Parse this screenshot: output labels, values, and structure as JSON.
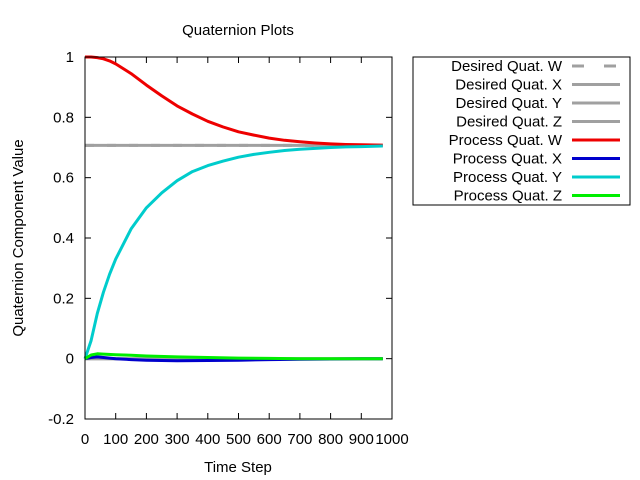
{
  "chart_data": {
    "type": "line",
    "title": "Quaternion Plots",
    "xlabel": "Time Step",
    "ylabel": "Quaternion Component Value",
    "xlim": [
      0,
      1000
    ],
    "ylim": [
      -0.2,
      1
    ],
    "xticks": [
      0,
      100,
      200,
      300,
      400,
      500,
      600,
      700,
      800,
      900,
      1000
    ],
    "yticks": [
      -0.2,
      0,
      0.2,
      0.4,
      0.6,
      0.8,
      1
    ],
    "xtick_labels": [
      "0",
      "100",
      "200",
      "300",
      "400",
      "500",
      "600",
      "700",
      "800",
      "900",
      "1000"
    ],
    "ytick_labels": [
      "-0.2",
      "0",
      "0.2",
      "0.4",
      "0.6",
      "0.8",
      "1"
    ],
    "grid": false,
    "legend_position": "outside-top-right",
    "series": [
      {
        "name": "Desired Quat. W",
        "color": "#a0a0a0",
        "dash": true,
        "x": [
          0,
          970
        ],
        "y": [
          0.707,
          0.707
        ]
      },
      {
        "name": "Desired Quat. X",
        "color": "#a0a0a0",
        "dash": false,
        "x": [
          0,
          970
        ],
        "y": [
          0,
          0
        ]
      },
      {
        "name": "Desired Quat. Y",
        "color": "#a0a0a0",
        "dash": false,
        "x": [
          0,
          970
        ],
        "y": [
          0.707,
          0.707
        ]
      },
      {
        "name": "Desired Quat. Z",
        "color": "#a0a0a0",
        "dash": false,
        "x": [
          0,
          970
        ],
        "y": [
          0,
          0
        ]
      },
      {
        "name": "Process Quat. W",
        "color": "#ee0000",
        "dash": false,
        "x": [
          0,
          20,
          40,
          60,
          80,
          100,
          150,
          200,
          250,
          300,
          350,
          400,
          450,
          500,
          550,
          600,
          650,
          700,
          750,
          800,
          850,
          900,
          970
        ],
        "y": [
          1.0,
          1.0,
          0.998,
          0.994,
          0.987,
          0.977,
          0.945,
          0.907,
          0.871,
          0.838,
          0.811,
          0.787,
          0.768,
          0.752,
          0.741,
          0.731,
          0.724,
          0.719,
          0.715,
          0.712,
          0.71,
          0.709,
          0.708
        ]
      },
      {
        "name": "Process Quat. X",
        "color": "#0000cc",
        "dash": false,
        "x": [
          0,
          20,
          40,
          60,
          100,
          150,
          200,
          300,
          400,
          500,
          600,
          700,
          800,
          900,
          970
        ],
        "y": [
          0.0,
          0.004,
          0.006,
          0.004,
          0.0,
          -0.003,
          -0.005,
          -0.007,
          -0.006,
          -0.005,
          -0.003,
          -0.002,
          -0.001,
          0.0,
          0.0
        ]
      },
      {
        "name": "Process Quat. Y",
        "color": "#00cccc",
        "dash": false,
        "x": [
          0,
          20,
          40,
          60,
          80,
          100,
          150,
          200,
          250,
          300,
          350,
          400,
          450,
          500,
          550,
          600,
          650,
          700,
          750,
          800,
          850,
          900,
          970
        ],
        "y": [
          0.0,
          0.06,
          0.15,
          0.22,
          0.28,
          0.33,
          0.43,
          0.5,
          0.55,
          0.59,
          0.62,
          0.64,
          0.655,
          0.668,
          0.677,
          0.684,
          0.69,
          0.694,
          0.697,
          0.7,
          0.702,
          0.703,
          0.705
        ]
      },
      {
        "name": "Process Quat. Z",
        "color": "#00ee00",
        "dash": false,
        "x": [
          0,
          20,
          40,
          60,
          100,
          150,
          200,
          300,
          400,
          500,
          600,
          700,
          800,
          900,
          970
        ],
        "y": [
          0.0,
          0.012,
          0.016,
          0.015,
          0.013,
          0.011,
          0.009,
          0.006,
          0.004,
          0.002,
          0.001,
          0.0,
          0.0,
          0.0,
          0.0
        ]
      }
    ]
  }
}
